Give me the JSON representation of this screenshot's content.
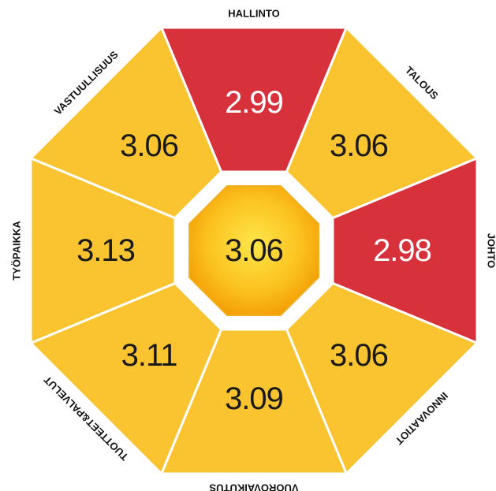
{
  "segments": [
    {
      "label": "HALLINTO",
      "value": "2.99",
      "color": "#d7313b",
      "text_color": "#ffffff"
    },
    {
      "label": "TALOUS",
      "value": "3.06",
      "color": "#f9c42f",
      "text_color": "#1a1a1a"
    },
    {
      "label": "JOHTO",
      "value": "2.98",
      "color": "#d7313b",
      "text_color": "#ffffff"
    },
    {
      "label": "INNOVAATIOT",
      "value": "3.06",
      "color": "#f9c42f",
      "text_color": "#1a1a1a"
    },
    {
      "label": "VUOROVAIKUTUS",
      "value": "3.09",
      "color": "#f9c42f",
      "text_color": "#1a1a1a"
    },
    {
      "label": "TUOTTEET&PALVELUT",
      "value": "3.11",
      "color": "#f9c42f",
      "text_color": "#1a1a1a"
    },
    {
      "label": "TYÖPAIKKA",
      "value": "3.13",
      "color": "#f9c42f",
      "text_color": "#1a1a1a"
    },
    {
      "label": "VASTUULLISUUS",
      "value": "3.06",
      "color": "#f9c42f",
      "text_color": "#1a1a1a"
    }
  ],
  "center": {
    "value": "3.06",
    "text_color": "#1a1a1a"
  }
}
